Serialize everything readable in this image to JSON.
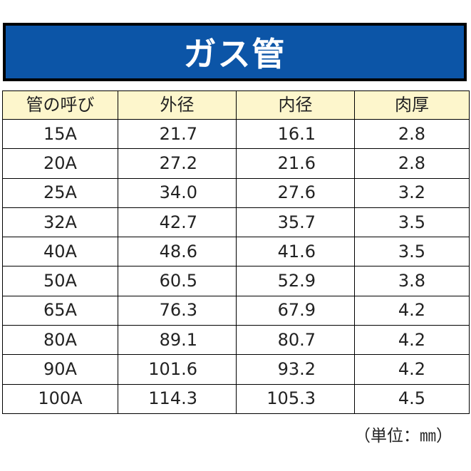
{
  "banner": {
    "title": "ガス管",
    "bg_color": "#0c55a7"
  },
  "table": {
    "header_bg": "#fdf6cc",
    "columns": [
      "管の呼び",
      "外径",
      "内径",
      "肉厚"
    ],
    "rows": [
      [
        "15A",
        "21.7",
        "16.1",
        "2.8"
      ],
      [
        "20A",
        "27.2",
        "21.6",
        "2.8"
      ],
      [
        "25A",
        "34.0",
        "27.6",
        "3.2"
      ],
      [
        "32A",
        "42.7",
        "35.7",
        "3.5"
      ],
      [
        "40A",
        "48.6",
        "41.6",
        "3.5"
      ],
      [
        "50A",
        "60.5",
        "52.9",
        "3.8"
      ],
      [
        "65A",
        "76.3",
        "67.9",
        "4.2"
      ],
      [
        "80A",
        "89.1",
        "80.7",
        "4.2"
      ],
      [
        "90A",
        "101.6",
        "93.2",
        "4.2"
      ],
      [
        "100A",
        "114.3",
        "105.3",
        "4.5"
      ]
    ]
  },
  "unit_note": "（単位：㎜）"
}
